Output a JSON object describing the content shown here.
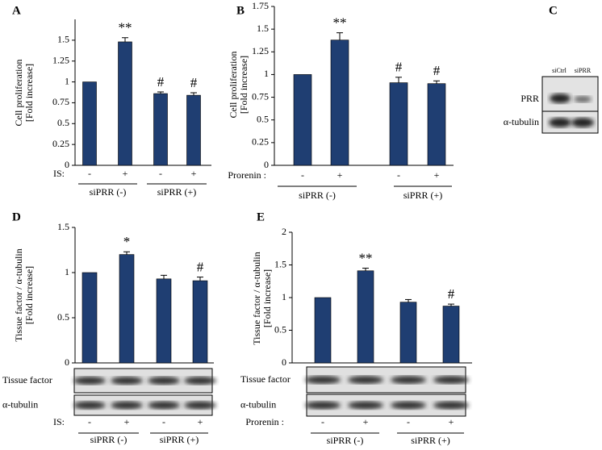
{
  "chart_data": [
    {
      "type": "bar",
      "panel_label": "A",
      "ylabel": [
        "Cell proliferation",
        "[Fold increase]"
      ],
      "categories": [
        "-",
        "+",
        "-",
        "+"
      ],
      "values": [
        1.0,
        1.48,
        0.86,
        0.84
      ],
      "errors": [
        null,
        0.05,
        0.02,
        0.03
      ],
      "annotations": [
        null,
        "**",
        "#",
        "#"
      ],
      "color": "#1f3e72",
      "ylim": [
        0,
        1.75
      ],
      "yticks": [
        0,
        0.25,
        0.5,
        0.75,
        1,
        1.25,
        1.5
      ],
      "treatment_label": "IS:",
      "groups": [
        "siPRR (-)",
        "siPRR (+)"
      ]
    },
    {
      "type": "bar",
      "panel_label": "B",
      "ylabel": [
        "Cell proliferation",
        "[Fold increase]"
      ],
      "categories": [
        "-",
        "+",
        "-",
        "+"
      ],
      "values": [
        1.0,
        1.38,
        0.91,
        0.9
      ],
      "errors": [
        null,
        0.08,
        0.06,
        0.03
      ],
      "annotations": [
        null,
        "**",
        "#",
        "#"
      ],
      "color": "#1f3e72",
      "ylim": [
        0,
        1.75
      ],
      "yticks": [
        0,
        0.25,
        0.5,
        0.75,
        1,
        1.25,
        1.5,
        1.75
      ],
      "treatment_label": "Prorenin :",
      "groups": [
        "siPRR (-)",
        "siPRR (+)"
      ]
    },
    {
      "type": "bar",
      "panel_label": "D",
      "ylabel": [
        "Tissue factor / α-tubulin",
        "[Fold increase]"
      ],
      "categories": [
        "-",
        "+",
        "-",
        "+"
      ],
      "values": [
        1.0,
        1.2,
        0.93,
        0.91
      ],
      "errors": [
        null,
        0.03,
        0.04,
        0.04
      ],
      "annotations": [
        null,
        "*",
        null,
        "#"
      ],
      "color": "#1f3e72",
      "ylim": [
        0,
        1.5
      ],
      "yticks": [
        0,
        0.5,
        1,
        1.5
      ],
      "blot_rows": [
        "Tissue factor",
        "α-tubulin"
      ],
      "treatment_label": "IS:",
      "groups": [
        "siPRR (-)",
        "siPRR (+)"
      ]
    },
    {
      "type": "bar",
      "panel_label": "E",
      "ylabel": [
        "Tissue factor / α-tubulin",
        "[Fold increase]"
      ],
      "categories": [
        "-",
        "+",
        "-",
        "+"
      ],
      "values": [
        1.0,
        1.41,
        0.93,
        0.87
      ],
      "errors": [
        null,
        0.04,
        0.04,
        0.03
      ],
      "annotations": [
        null,
        "**",
        null,
        "#"
      ],
      "color": "#1f3e72",
      "ylim": [
        0,
        2
      ],
      "yticks": [
        0,
        0.5,
        1,
        1.5,
        2
      ],
      "blot_rows": [
        "Tissue factor",
        "α-tubulin"
      ],
      "treatment_label": "Prorenin :",
      "groups": [
        "siPRR (-)",
        "siPRR (+)"
      ]
    }
  ],
  "panel_c": {
    "panel_label": "C",
    "lanes": [
      "siCtrl",
      "siPRR"
    ],
    "rows": [
      "PRR",
      "α-tubulin"
    ]
  }
}
